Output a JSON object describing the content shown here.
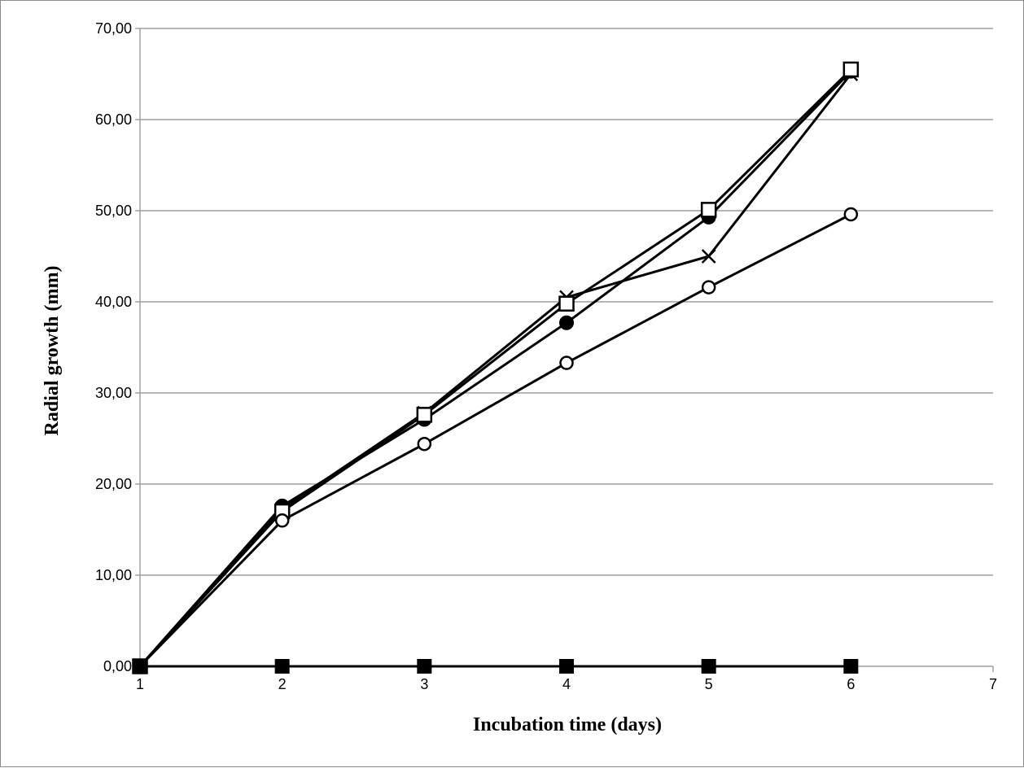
{
  "chart_data": {
    "type": "line",
    "title": "",
    "xlabel": "Incubation time (days)",
    "ylabel": "Radial growth (mm)",
    "x": [
      1,
      2,
      3,
      4,
      5,
      6
    ],
    "xlim": [
      1,
      7
    ],
    "ylim": [
      0,
      70
    ],
    "x_ticks": [
      1,
      2,
      3,
      4,
      5,
      6,
      7
    ],
    "x_tick_labels": [
      "1",
      "2",
      "3",
      "4",
      "5",
      "6",
      "7"
    ],
    "y_ticks": [
      0,
      10,
      20,
      30,
      40,
      50,
      60,
      70
    ],
    "y_tick_labels": [
      "0,00",
      "10,00",
      "20,00",
      "30,00",
      "40,00",
      "50,00",
      "60,00",
      "70,00"
    ],
    "grid": "horizontal",
    "legend": "none",
    "line_color": "#000000",
    "grid_color": "#8c8c8c",
    "series": [
      {
        "marker": "filled-circle",
        "values": [
          0,
          17.6,
          27.1,
          37.7,
          49.3,
          65.3
        ]
      },
      {
        "marker": "x-cross",
        "values": [
          0,
          17.3,
          27.8,
          40.5,
          45.0,
          65.0
        ]
      },
      {
        "marker": "open-square",
        "values": [
          0,
          17.0,
          27.6,
          39.8,
          50.1,
          65.5
        ]
      },
      {
        "marker": "open-circle",
        "values": [
          0,
          16.0,
          24.4,
          33.3,
          41.6,
          49.6
        ]
      },
      {
        "marker": "filled-square",
        "values": [
          0,
          0,
          0,
          0,
          0,
          0
        ]
      }
    ]
  }
}
